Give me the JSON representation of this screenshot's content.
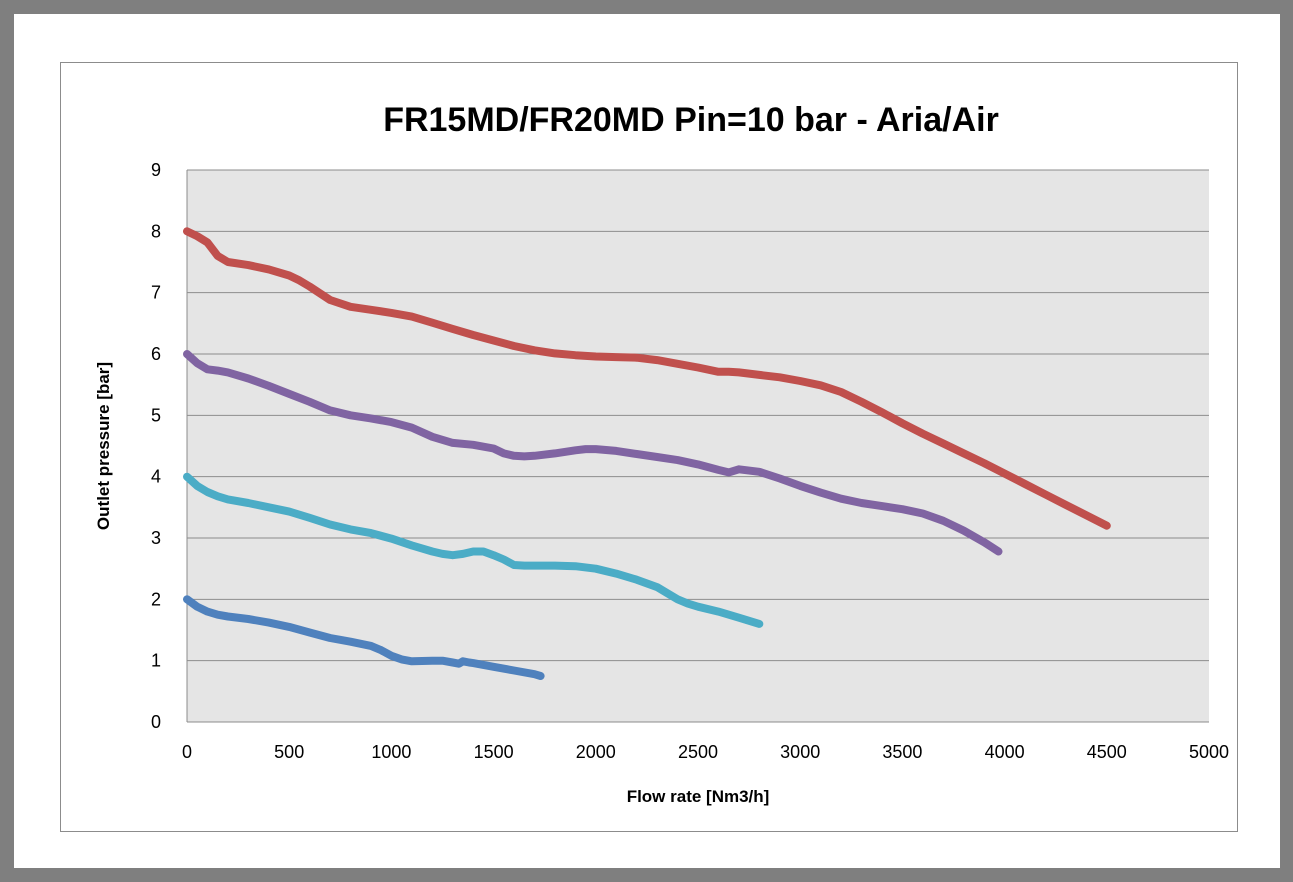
{
  "chart_data": {
    "type": "line",
    "title": "FR15MD/FR20MD  Pin=10 bar  -  Aria/Air",
    "xlabel": "Flow rate [Nm3/h]",
    "ylabel": "Outlet pressure [bar]",
    "xlim": [
      0,
      5000
    ],
    "ylim": [
      0,
      9
    ],
    "x_ticks": [
      "0",
      "500",
      "1000",
      "1500",
      "2000",
      "2500",
      "3000",
      "3500",
      "4000",
      "4500",
      "5000"
    ],
    "y_ticks": [
      "0",
      "1",
      "2",
      "3",
      "4",
      "5",
      "6",
      "7",
      "8",
      "9"
    ],
    "grid": true,
    "plot_background": "#e5e5e5",
    "grid_color": "#8c8c8c",
    "series": [
      {
        "color": "#c0504d",
        "x": [
          0,
          50,
          100,
          150,
          200,
          300,
          400,
          500,
          550,
          600,
          700,
          800,
          900,
          1000,
          1100,
          1200,
          1300,
          1400,
          1500,
          1600,
          1700,
          1800,
          1900,
          2000,
          2100,
          2200,
          2300,
          2400,
          2500,
          2600,
          2650,
          2700,
          2800,
          2900,
          3000,
          3100,
          3200,
          3300,
          3400,
          3500,
          3600,
          3700,
          3800,
          3900,
          4000,
          4100,
          4200,
          4300,
          4400,
          4500
        ],
        "y": [
          8.0,
          7.92,
          7.82,
          7.6,
          7.5,
          7.45,
          7.38,
          7.28,
          7.2,
          7.1,
          6.88,
          6.77,
          6.72,
          6.67,
          6.61,
          6.51,
          6.41,
          6.31,
          6.22,
          6.13,
          6.06,
          6.01,
          5.98,
          5.96,
          5.95,
          5.94,
          5.9,
          5.84,
          5.78,
          5.71,
          5.71,
          5.7,
          5.66,
          5.62,
          5.56,
          5.49,
          5.38,
          5.22,
          5.05,
          4.87,
          4.7,
          4.54,
          4.38,
          4.22,
          4.05,
          3.88,
          3.71,
          3.54,
          3.37,
          3.2
        ]
      },
      {
        "color": "#8064a2",
        "x": [
          0,
          50,
          100,
          150,
          200,
          300,
          400,
          500,
          600,
          700,
          800,
          900,
          1000,
          1100,
          1200,
          1300,
          1400,
          1500,
          1550,
          1600,
          1650,
          1700,
          1800,
          1900,
          1950,
          2000,
          2100,
          2200,
          2300,
          2400,
          2500,
          2600,
          2650,
          2700,
          2800,
          2900,
          3000,
          3100,
          3200,
          3300,
          3400,
          3500,
          3600,
          3700,
          3800,
          3900,
          3970
        ],
        "y": [
          6.0,
          5.85,
          5.75,
          5.73,
          5.7,
          5.6,
          5.48,
          5.35,
          5.22,
          5.08,
          5.0,
          4.95,
          4.89,
          4.8,
          4.65,
          4.55,
          4.52,
          4.46,
          4.38,
          4.34,
          4.33,
          4.34,
          4.38,
          4.43,
          4.45,
          4.45,
          4.42,
          4.37,
          4.32,
          4.27,
          4.2,
          4.11,
          4.07,
          4.12,
          4.08,
          3.97,
          3.85,
          3.74,
          3.64,
          3.57,
          3.52,
          3.47,
          3.4,
          3.28,
          3.12,
          2.93,
          2.78
        ]
      },
      {
        "color": "#4bacc6",
        "x": [
          0,
          50,
          100,
          150,
          200,
          300,
          400,
          500,
          600,
          700,
          800,
          900,
          1000,
          1100,
          1200,
          1250,
          1300,
          1350,
          1400,
          1450,
          1500,
          1550,
          1600,
          1650,
          1700,
          1800,
          1900,
          2000,
          2100,
          2200,
          2300,
          2350,
          2400,
          2450,
          2500,
          2600,
          2700,
          2800
        ],
        "y": [
          4.0,
          3.85,
          3.75,
          3.68,
          3.63,
          3.57,
          3.5,
          3.43,
          3.33,
          3.22,
          3.14,
          3.08,
          2.99,
          2.88,
          2.78,
          2.74,
          2.72,
          2.74,
          2.78,
          2.78,
          2.72,
          2.65,
          2.56,
          2.55,
          2.55,
          2.55,
          2.54,
          2.5,
          2.42,
          2.32,
          2.2,
          2.1,
          2.0,
          1.93,
          1.88,
          1.8,
          1.7,
          1.6
        ]
      },
      {
        "color": "#4f81bd",
        "x": [
          0,
          50,
          100,
          150,
          200,
          300,
          400,
          500,
          600,
          700,
          800,
          900,
          950,
          1000,
          1050,
          1100,
          1200,
          1250,
          1300,
          1330,
          1350,
          1380,
          1400,
          1500,
          1600,
          1700,
          1730
        ],
        "y": [
          2.0,
          1.88,
          1.8,
          1.75,
          1.72,
          1.68,
          1.62,
          1.55,
          1.46,
          1.37,
          1.31,
          1.24,
          1.17,
          1.08,
          1.02,
          0.99,
          1.0,
          1.0,
          0.97,
          0.95,
          0.99,
          0.97,
          0.96,
          0.9,
          0.84,
          0.78,
          0.75
        ]
      }
    ]
  }
}
